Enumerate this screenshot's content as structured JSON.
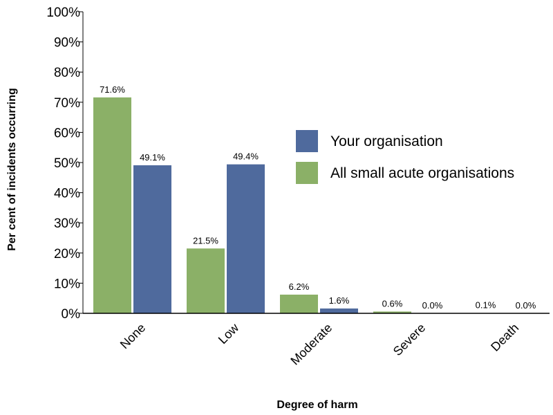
{
  "chart_data": {
    "type": "bar",
    "title": "",
    "xlabel": "Degree of harm",
    "ylabel": "Per cent of incidents occurring",
    "categories": [
      "None",
      "Low",
      "Moderate",
      "Severe",
      "Death"
    ],
    "series": [
      {
        "name": "All small acute organisations",
        "color": "#8bb067",
        "values": [
          71.6,
          21.5,
          6.2,
          0.6,
          0.1
        ],
        "labels": [
          "71.6%",
          "21.5%",
          "6.2%",
          "0.6%",
          "0.1%"
        ]
      },
      {
        "name": "Your organisation",
        "color": "#4f6a9d",
        "values": [
          49.1,
          49.4,
          1.6,
          0.0,
          0.0
        ],
        "labels": [
          "49.1%",
          "49.4%",
          "1.6%",
          "0.0%",
          "0.0%"
        ]
      }
    ],
    "ylim": [
      0,
      100
    ],
    "yticks": [
      "0%",
      "10%",
      "20%",
      "30%",
      "40%",
      "50%",
      "60%",
      "70%",
      "80%",
      "90%",
      "100%"
    ],
    "legend": {
      "position": "right",
      "entries": [
        {
          "label": "Your organisation",
          "color": "#4f6a9d"
        },
        {
          "label": "All small acute organisations",
          "color": "#8bb067"
        }
      ]
    },
    "grid": false
  }
}
